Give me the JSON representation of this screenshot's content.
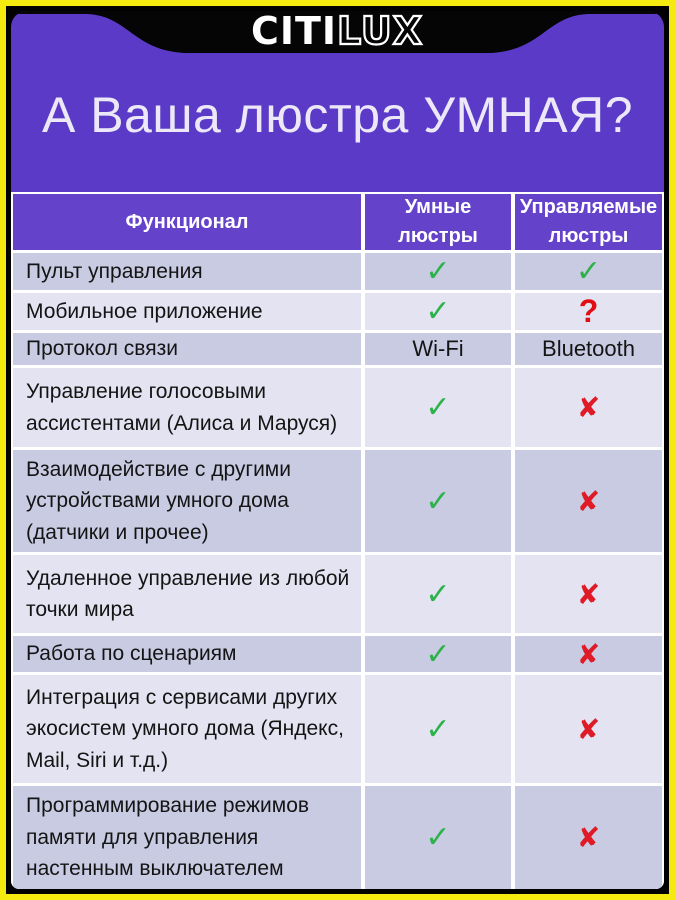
{
  "brand": {
    "citi": "CITI",
    "lux": "LUX"
  },
  "title": "А Ваша люстра УМНАЯ?",
  "table": {
    "columns": [
      {
        "label": "Функционал"
      },
      {
        "label": "Умные люстры"
      },
      {
        "label": "Управляемые люстры"
      }
    ],
    "symbols": {
      "check": "✓",
      "cross": "✘",
      "question": "?"
    },
    "rows": [
      {
        "feature": "Пульт управления",
        "smart": "check",
        "controlled": "check"
      },
      {
        "feature": "Мобильное приложение",
        "smart": "check",
        "controlled": "question"
      },
      {
        "feature": "Протокол связи",
        "smart": "Wi-Fi",
        "controlled": "Bluetooth"
      },
      {
        "feature": "Управление голосовыми ассистентами (Алиса и Маруся)",
        "smart": "check",
        "controlled": "cross"
      },
      {
        "feature": "Взаимодействие с другими устройствами умного дома (датчики и прочее)",
        "smart": "check",
        "controlled": "cross"
      },
      {
        "feature": "Удаленное управление из любой точки мира",
        "smart": "check",
        "controlled": "cross"
      },
      {
        "feature": "Работа по сценариям",
        "smart": "check",
        "controlled": "cross"
      },
      {
        "feature": "Интеграция с сервисами других экосистем умного дома (Яндекс, Mail, Siri и т.д.)",
        "smart": "check",
        "controlled": "cross"
      },
      {
        "feature": "Программирование режимов памяти для управления настенным выключателем",
        "smart": "check",
        "controlled": "cross"
      }
    ]
  },
  "colors": {
    "border_yellow": "#F5EA0F",
    "border_black": "#000000",
    "background_purple": "#5B3AC7",
    "header_purple": "#6442CA",
    "row_dark": "#C9CBE3",
    "row_light": "#E3E3F1",
    "grid_line": "#FFFFFF",
    "title_text": "#ECE8F8",
    "check_green": "#2DB14A",
    "cross_red": "#DE1B26",
    "question_red": "#E20E14"
  },
  "chart_data": {
    "type": "table",
    "title": "А Ваша люстра УМНАЯ?",
    "columns": [
      "Функционал",
      "Умные люстры",
      "Управляемые люстры"
    ],
    "rows": [
      [
        "Пульт управления",
        "✓",
        "✓"
      ],
      [
        "Мобильное приложение",
        "✓",
        "?"
      ],
      [
        "Протокол связи",
        "Wi-Fi",
        "Bluetooth"
      ],
      [
        "Управление голосовыми ассистентами (Алиса и Маруся)",
        "✓",
        "✘"
      ],
      [
        "Взаимодействие с другими устройствами умного дома (датчики и прочее)",
        "✓",
        "✘"
      ],
      [
        "Удаленное управление из любой точки мира",
        "✓",
        "✘"
      ],
      [
        "Работа по сценариям",
        "✓",
        "✘"
      ],
      [
        "Интеграция с сервисами других экосистем умного дома (Яндекс, Mail, Siri и т.д.)",
        "✓",
        "✘"
      ],
      [
        "Программирование режимов памяти для управления настенным выключателем",
        "✓",
        "✘"
      ]
    ],
    "legend_position": "none",
    "notes": "Comparison infographic: smart chandeliers vs controlled chandeliers"
  }
}
